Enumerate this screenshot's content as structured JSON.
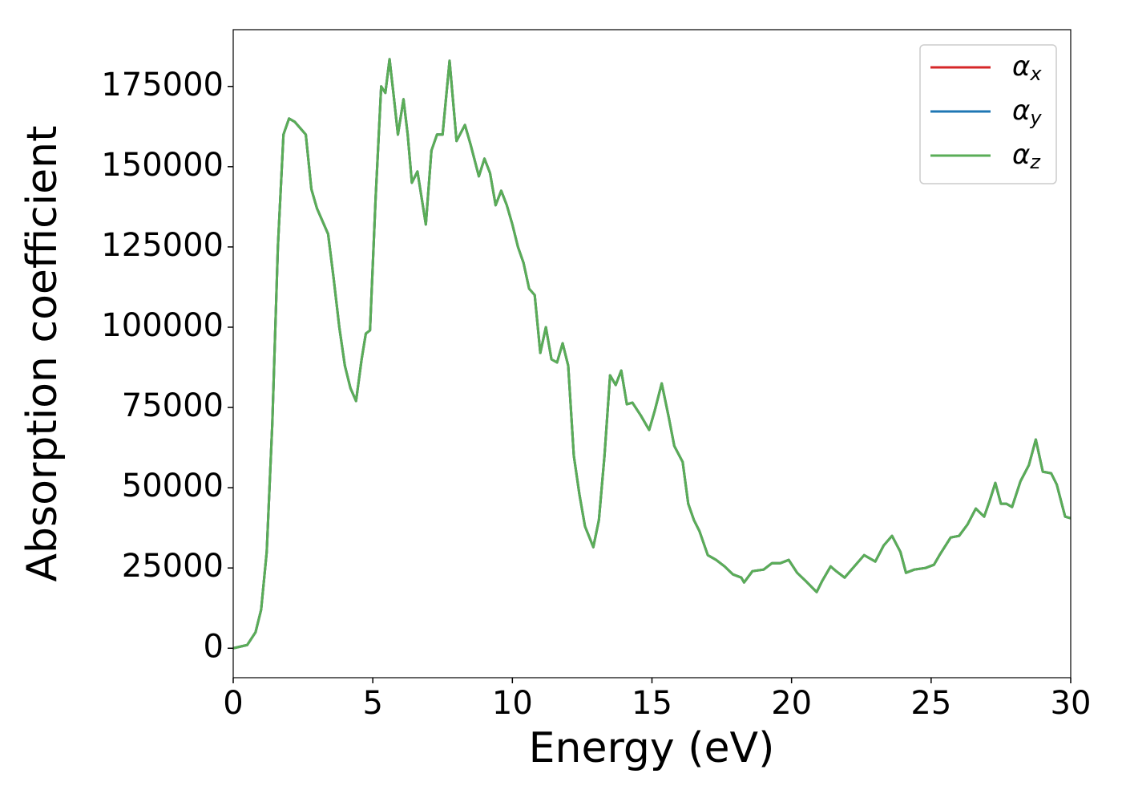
{
  "chart_data": {
    "type": "line",
    "xlabel": "Energy (eV)",
    "ylabel": "Absorption coefficient",
    "x": [
      0,
      0.5,
      0.8,
      1.0,
      1.2,
      1.4,
      1.6,
      1.8,
      2.0,
      2.2,
      2.4,
      2.6,
      2.8,
      3.0,
      3.2,
      3.4,
      3.6,
      3.8,
      4.0,
      4.2,
      4.4,
      4.6,
      4.75,
      4.9,
      5.1,
      5.3,
      5.45,
      5.6,
      5.75,
      5.9,
      6.1,
      6.25,
      6.4,
      6.6,
      6.9,
      7.1,
      7.3,
      7.5,
      7.75,
      7.9,
      8.0,
      8.3,
      8.5,
      8.8,
      9.0,
      9.2,
      9.4,
      9.6,
      9.8,
      10.0,
      10.2,
      10.4,
      10.6,
      10.8,
      11.0,
      11.2,
      11.4,
      11.6,
      11.8,
      12.0,
      12.2,
      12.4,
      12.6,
      12.9,
      13.1,
      13.3,
      13.5,
      13.7,
      13.9,
      14.1,
      14.3,
      14.6,
      14.9,
      15.1,
      15.35,
      15.6,
      15.8,
      16.1,
      16.3,
      16.5,
      16.7,
      17.0,
      17.3,
      17.6,
      17.9,
      18.2,
      18.3,
      18.6,
      19.0,
      19.3,
      19.6,
      19.9,
      20.2,
      20.5,
      20.9,
      21.1,
      21.4,
      21.6,
      21.9,
      22.2,
      22.6,
      23.0,
      23.3,
      23.6,
      23.9,
      24.1,
      24.4,
      24.8,
      25.1,
      25.3,
      25.7,
      26.0,
      26.3,
      26.6,
      26.9,
      27.1,
      27.3,
      27.5,
      27.7,
      27.9,
      28.2,
      28.5,
      28.75,
      29.0,
      29.3,
      29.5,
      29.8,
      30.0
    ],
    "series": [
      {
        "name": "α_x",
        "color": "#d62728",
        "values": [
          0,
          1000,
          5000,
          12000,
          30000,
          70000,
          125000,
          160000,
          165000,
          164000,
          162000,
          160000,
          143000,
          137000,
          133000,
          129000,
          115000,
          100000,
          88000,
          81000,
          77000,
          90000,
          98000,
          99000,
          140000,
          175000,
          173000,
          183500,
          172000,
          160000,
          171000,
          160000,
          145000,
          148500,
          132000,
          155000,
          160000,
          160000,
          183000,
          168000,
          158000,
          163000,
          157000,
          147000,
          152500,
          148000,
          138000,
          142500,
          138000,
          132000,
          125000,
          120000,
          112000,
          110000,
          92000,
          100000,
          90000,
          89000,
          95000,
          88000,
          60000,
          48000,
          38000,
          31500,
          40000,
          60000,
          85000,
          82000,
          86500,
          76000,
          76500,
          72500,
          68000,
          74000,
          82500,
          72000,
          63000,
          58000,
          45000,
          40000,
          36500,
          29000,
          27500,
          25500,
          23000,
          22000,
          20500,
          24000,
          24500,
          26500,
          26500,
          27500,
          23500,
          21000,
          17500,
          21000,
          25500,
          24000,
          22000,
          25000,
          29000,
          27000,
          32000,
          35000,
          30000,
          23500,
          24500,
          25000,
          26000,
          29000,
          34500,
          35000,
          38500,
          43500,
          41000,
          46000,
          51500,
          45000,
          45000,
          44000,
          52000,
          57000,
          65000,
          55000,
          54500,
          51000,
          41000,
          40500
        ]
      },
      {
        "name": "α_y",
        "color": "#1f77b4",
        "values": [
          0,
          1000,
          5000,
          12000,
          30000,
          70000,
          125000,
          160000,
          165000,
          164000,
          162000,
          160000,
          143000,
          137000,
          133000,
          129000,
          115000,
          100000,
          88000,
          81000,
          77000,
          90000,
          98000,
          99000,
          140000,
          175000,
          173000,
          183500,
          172000,
          160000,
          171000,
          160000,
          145000,
          148500,
          132000,
          155000,
          160000,
          160000,
          183000,
          168000,
          158000,
          163000,
          157000,
          147000,
          152500,
          148000,
          138000,
          142500,
          138000,
          132000,
          125000,
          120000,
          112000,
          110000,
          92000,
          100000,
          90000,
          89000,
          95000,
          88000,
          60000,
          48000,
          38000,
          31500,
          40000,
          60000,
          85000,
          82000,
          86500,
          76000,
          76500,
          72500,
          68000,
          74000,
          82500,
          72000,
          63000,
          58000,
          45000,
          40000,
          36500,
          29000,
          27500,
          25500,
          23000,
          22000,
          20500,
          24000,
          24500,
          26500,
          26500,
          27500,
          23500,
          21000,
          17500,
          21000,
          25500,
          24000,
          22000,
          25000,
          29000,
          27000,
          32000,
          35000,
          30000,
          23500,
          24500,
          25000,
          26000,
          29000,
          34500,
          35000,
          38500,
          43500,
          41000,
          46000,
          51500,
          45000,
          45000,
          44000,
          52000,
          57000,
          65000,
          55000,
          54500,
          51000,
          41000,
          40500
        ]
      },
      {
        "name": "α_z",
        "color": "#5aad57",
        "values": [
          0,
          1000,
          5000,
          12000,
          30000,
          70000,
          125000,
          160000,
          165000,
          164000,
          162000,
          160000,
          143000,
          137000,
          133000,
          129000,
          115000,
          100000,
          88000,
          81000,
          77000,
          90000,
          98000,
          99000,
          140000,
          175000,
          173000,
          183500,
          172000,
          160000,
          171000,
          160000,
          145000,
          148500,
          132000,
          155000,
          160000,
          160000,
          183000,
          168000,
          158000,
          163000,
          157000,
          147000,
          152500,
          148000,
          138000,
          142500,
          138000,
          132000,
          125000,
          120000,
          112000,
          110000,
          92000,
          100000,
          90000,
          89000,
          95000,
          88000,
          60000,
          48000,
          38000,
          31500,
          40000,
          60000,
          85000,
          82000,
          86500,
          76000,
          76500,
          72500,
          68000,
          74000,
          82500,
          72000,
          63000,
          58000,
          45000,
          40000,
          36500,
          29000,
          27500,
          25500,
          23000,
          22000,
          20500,
          24000,
          24500,
          26500,
          26500,
          27500,
          23500,
          21000,
          17500,
          21000,
          25500,
          24000,
          22000,
          25000,
          29000,
          27000,
          32000,
          35000,
          30000,
          23500,
          24500,
          25000,
          26000,
          29000,
          34500,
          35000,
          38500,
          43500,
          41000,
          46000,
          51500,
          45000,
          45000,
          44000,
          52000,
          57000,
          65000,
          55000,
          54500,
          51000,
          41000,
          40500
        ]
      }
    ],
    "xlim": [
      0,
      30
    ],
    "xticks": [
      0,
      5,
      10,
      15,
      20,
      25,
      30
    ],
    "ylim": [
      -9175,
      192675
    ],
    "yticks": [
      0,
      25000,
      50000,
      75000,
      100000,
      125000,
      150000,
      175000
    ],
    "legend": "upper right",
    "grid": false
  }
}
